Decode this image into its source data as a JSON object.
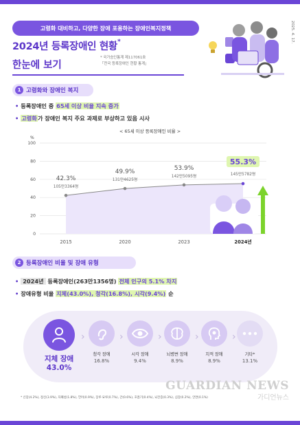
{
  "header": {
    "tag": "고령화 대비하고, 다양한 장애 포용하는 장애인복지정책",
    "title_line1": "2024년 등록장애인 현황",
    "title_asterisk": "*",
    "title_line2": "한눈에 보기",
    "source_line1": "* 국가승인통계 제117061호",
    "source_line2": "「전국 등록장애인 현황 통계」",
    "date": "2025. 4. 17."
  },
  "section1": {
    "number": "1",
    "title": "고령화와 장애인 복지",
    "bullet1_prefix": "등록장애인 중 ",
    "bullet1_highlight": "65세 이상 비율 지속 증가",
    "bullet2_highlight": "고령화",
    "bullet2_rest": "가 장애인 복지 주요 과제로 부상하고 있음 시사",
    "chart_caption": "< 65세 이상 등록장애인 비율 >"
  },
  "chart_data": {
    "type": "line",
    "title": "< 65세 이상 등록장애인 비율 >",
    "ylabel": "%",
    "ylim": [
      0,
      100
    ],
    "yticks": [
      0,
      20,
      40,
      60,
      80,
      100
    ],
    "categories": [
      "2015",
      "2020",
      "2023",
      "2024년"
    ],
    "values": [
      42.3,
      49.9,
      53.9,
      55.3
    ],
    "value_labels": [
      "42.3%",
      "49.9%",
      "53.9%",
      "55.3%"
    ],
    "count_labels": [
      "105만3364명",
      "131만4625명",
      "142만5095명",
      "145만5782명"
    ],
    "highlight_color": "#6a45d6",
    "line_color": "#888888",
    "area_color": "#ece6fb",
    "grid": true
  },
  "section2": {
    "number": "2",
    "title": "등록장애인 비율 및 장애 유형",
    "bullet1_chip": "2024년",
    "bullet1_mid": " 등록장애인(263만1356명) ",
    "bullet1_highlight": "전체 인구의 5.1% 차지",
    "bullet2_prefix": "장애유형 비율 ",
    "bullet2_highlight": "지체(43.0%), 청각(16.8%), 시각(9.4%)",
    "bullet2_suffix": " 순",
    "types": [
      {
        "name": "지체 장애",
        "pct": "43.0%",
        "icon": "person-icon"
      },
      {
        "name": "청각 장애",
        "pct": "16.8%",
        "icon": "ear-icon"
      },
      {
        "name": "시각 장애",
        "pct": "9.4%",
        "icon": "eye-icon"
      },
      {
        "name": "뇌병변 장애",
        "pct": "8.9%",
        "icon": "brain-icon"
      },
      {
        "name": "지적 장애",
        "pct": "8.9%",
        "icon": "head-puzzle-icon"
      },
      {
        "name": "기타*",
        "pct": "13.1%",
        "icon": "more-dots-icon"
      }
    ],
    "footnote": "* 신장(4.2%), 정신(3.9%), 자폐성(1.8%), 언어(0.9%), 장루·요루(0.7%), 간(0.6%), 호흡기(0.4%), 뇌전증(0.3%), 심장(0.2%), 안면(0.1%)"
  },
  "watermark": {
    "main": "GUARDIAN NEWS",
    "sub": "가디언뉴스"
  },
  "colors": {
    "brand": "#6a45d6",
    "highlight_bg": "#dff6b0",
    "pill_bg": "#e7defb"
  }
}
